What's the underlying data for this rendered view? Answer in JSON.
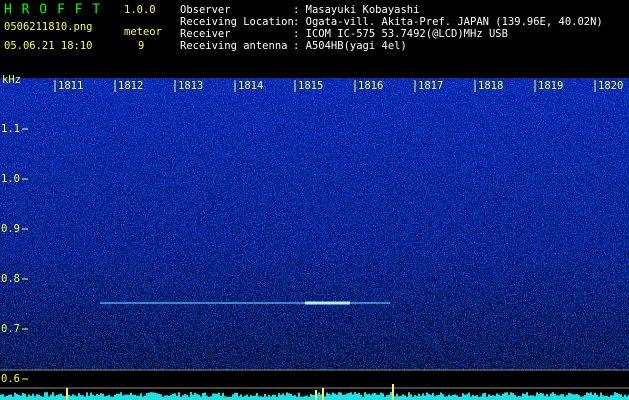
{
  "header": {
    "app_name": "H R O F F T",
    "version": "1.0.0",
    "file_name": "0506211810.png",
    "counter_label": "meteor",
    "timestamp": "05.06.21 18:10",
    "counter_value": "9"
  },
  "info": [
    {
      "label": "Observer",
      "value": ": Masayuki Kobayashi"
    },
    {
      "label": "Receiving Location",
      "value": ": Ogata-vill. Akita-Pref. JAPAN (139.96E, 40.02N)"
    },
    {
      "label": "Receiver",
      "value": ": ICOM IC-575 53.7492(@LCD)MHz USB"
    },
    {
      "label": "Receiving antenna",
      "value": ": A504HB(yagi 4el)"
    }
  ],
  "spectrogram": {
    "freq_unit": "kHz",
    "freq_labels": [
      "1.1",
      "1.0",
      "0.9",
      "0.8",
      "0.7",
      "0.6"
    ],
    "time_labels": [
      "1811",
      "1812",
      "1813",
      "1814",
      "1815",
      "1816",
      "1817",
      "1818",
      "1819",
      "1820"
    ]
  }
}
